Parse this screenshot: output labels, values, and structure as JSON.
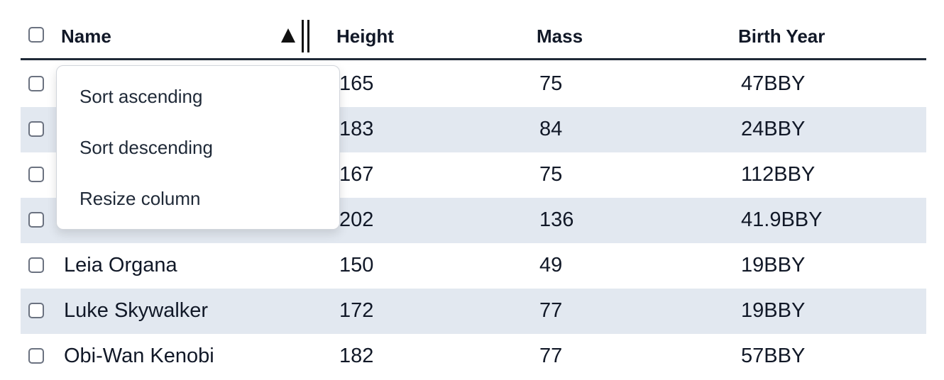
{
  "table": {
    "columns": [
      "Name",
      "Height",
      "Mass",
      "Birth Year"
    ],
    "rows": [
      [
        null,
        "165",
        "75",
        "47BBY"
      ],
      [
        null,
        "183",
        "84",
        "24BBY"
      ],
      [
        null,
        "167",
        "75",
        "112BBY"
      ],
      [
        null,
        "202",
        "136",
        "41.9BBY"
      ],
      [
        "Leia Organa",
        "150",
        "49",
        "19BBY"
      ],
      [
        "Luke Skywalker",
        "172",
        "77",
        "19BBY"
      ],
      [
        "Obi-Wan Kenobi",
        "182",
        "77",
        "57BBY"
      ]
    ]
  },
  "menu": {
    "items": [
      "Sort ascending",
      "Sort descending",
      "Resize column"
    ]
  }
}
